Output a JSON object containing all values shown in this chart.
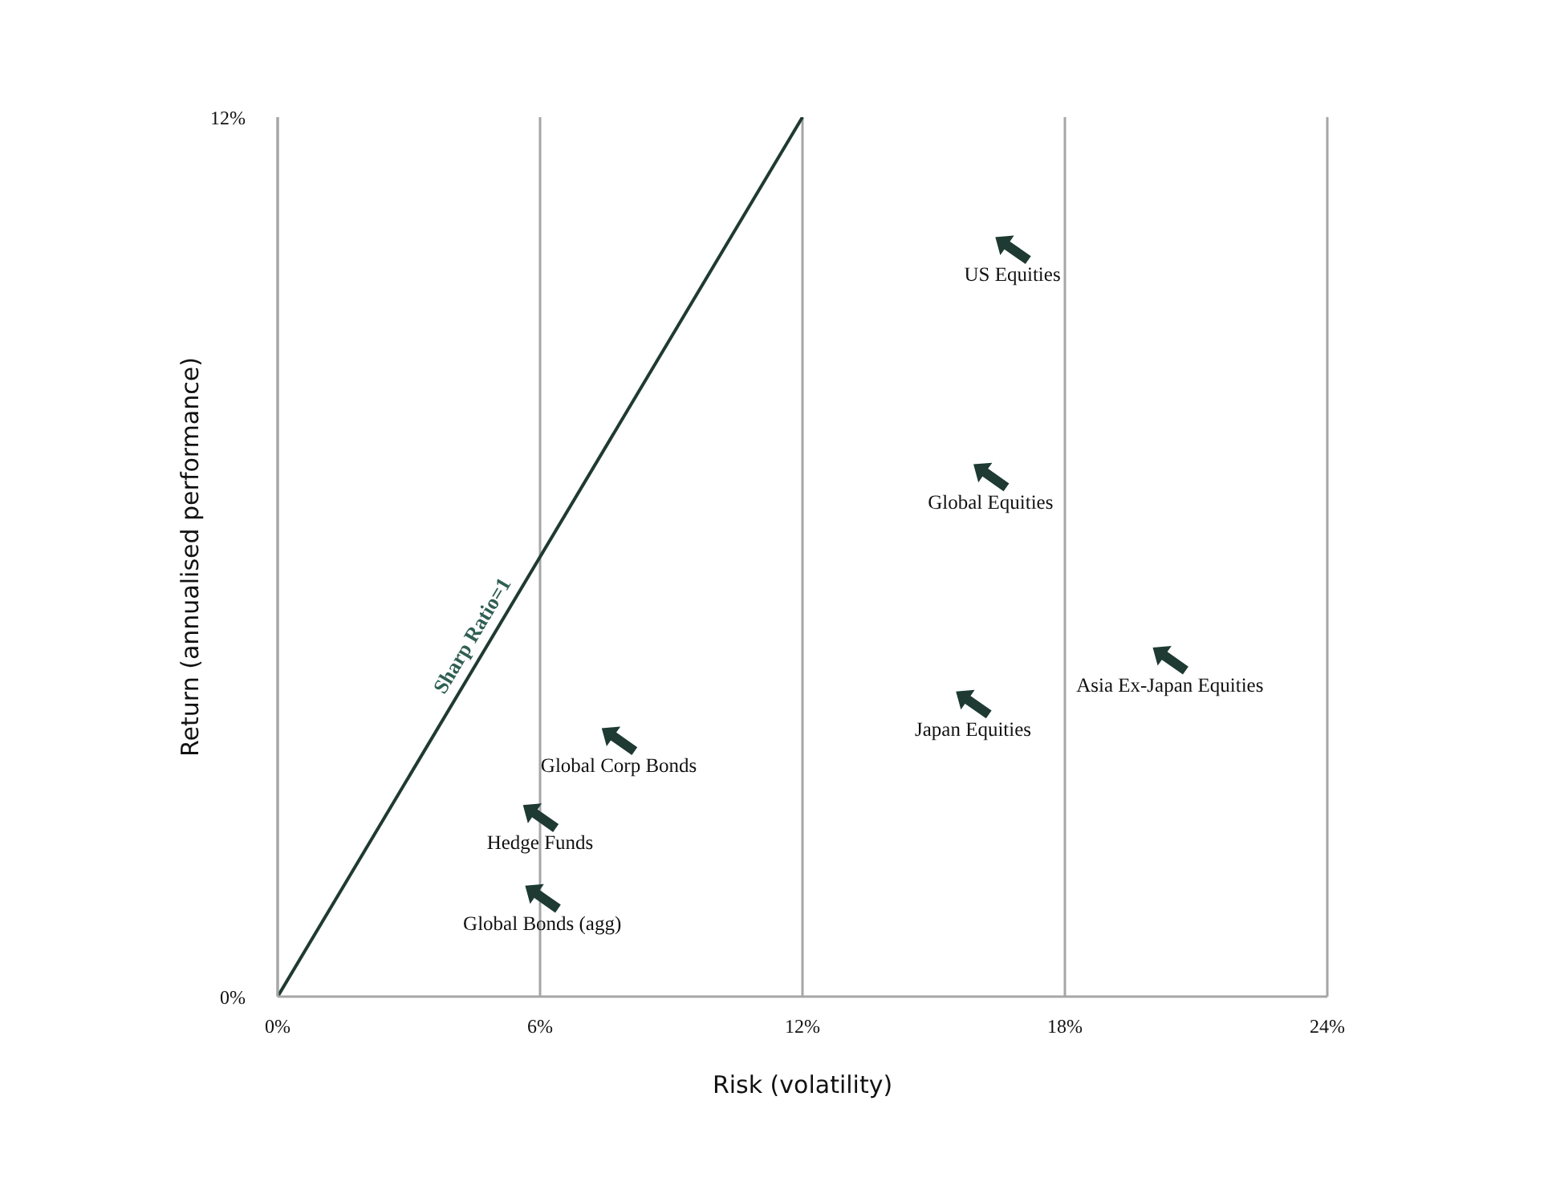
{
  "chart_data": {
    "type": "scatter",
    "xlabel": "Risk (volatility)",
    "ylabel": "Return (annualised performance)",
    "xlim": [
      0,
      24
    ],
    "xticks": [
      {
        "value": 0,
        "label": "0%"
      },
      {
        "value": 6,
        "label": "6%"
      },
      {
        "value": 12,
        "label": "12%"
      },
      {
        "value": 18,
        "label": "18%"
      },
      {
        "value": 24,
        "label": "24%"
      }
    ],
    "ylim": [
      0,
      12
    ],
    "yticks": [
      {
        "value": 0,
        "label": "0%"
      },
      {
        "value": 12,
        "label": "12%"
      }
    ],
    "grid": "x",
    "series": [
      {
        "name": "Sharp Ratio=1",
        "type": "line",
        "color": "#1f3a33",
        "x": [
          0,
          12
        ],
        "values": [
          0,
          12
        ]
      },
      {
        "name": "US Equities",
        "color": "#1e3a32",
        "x": [
          16.8
        ],
        "values": [
          10.2
        ]
      },
      {
        "name": "Global Equities",
        "color": "#1e3a32",
        "x": [
          16.3
        ],
        "values": [
          7.1
        ]
      },
      {
        "name": "Asia Ex-Japan Equities",
        "color": "#1e3a32",
        "x": [
          20.4
        ],
        "values": [
          4.6
        ]
      },
      {
        "name": "Japan Equities",
        "color": "#1e3a32",
        "x": [
          15.9
        ],
        "values": [
          4.0
        ]
      },
      {
        "name": "Global Corp Bonds",
        "color": "#1e3a32",
        "x": [
          7.8
        ],
        "values": [
          3.5
        ]
      },
      {
        "name": "Hedge Funds",
        "color": "#1e3a32",
        "x": [
          6.0
        ],
        "values": [
          2.45
        ]
      },
      {
        "name": "Global Bonds (agg)",
        "color": "#1e3a32",
        "x": [
          6.05
        ],
        "values": [
          1.35
        ]
      }
    ]
  }
}
